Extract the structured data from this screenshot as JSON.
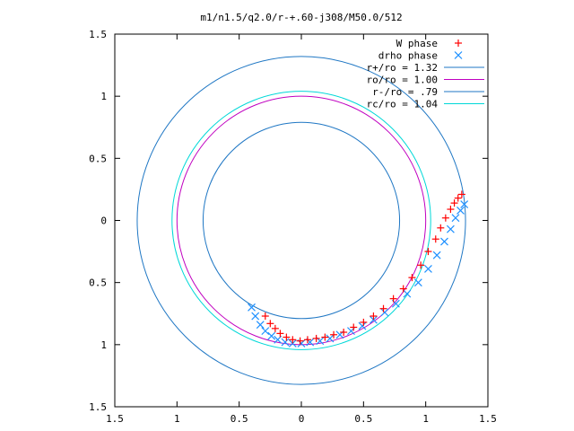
{
  "chart_data": {
    "type": "scatter",
    "title": "m1/n1.5/q2.0/r-+.60-j308/M50.0/512",
    "xlabel": "",
    "ylabel": "",
    "xlim": [
      -1.5,
      1.5
    ],
    "ylim": [
      -1.5,
      1.5
    ],
    "x_ticks": [
      -1.5,
      -1,
      -0.5,
      0,
      0.5,
      1,
      1.5
    ],
    "y_ticks": [
      -1.5,
      -1,
      -0.5,
      0,
      0.5,
      1,
      1.5
    ],
    "x_tick_labels": [
      "1.5",
      "1",
      "0.5",
      "0",
      "0.5",
      "1",
      "1.5"
    ],
    "y_tick_labels": [
      "1.5",
      "1",
      "0.5",
      "0",
      "0.5",
      "1",
      "1.5"
    ],
    "grid": false,
    "legend_position": "top-right",
    "colors": {
      "w_phase": "#ff0000",
      "drho_phase": "#1e90ff",
      "r_plus": "#1f77c4",
      "ro": "#c000c0",
      "r_minus": "#1f77c4",
      "rc": "#00d8d8"
    },
    "point_series": [
      {
        "name": "W phase",
        "marker": "plus",
        "color": "#ff0000",
        "x": [
          -0.29,
          -0.25,
          -0.21,
          -0.17,
          -0.12,
          -0.07,
          -0.01,
          0.05,
          0.12,
          0.19,
          0.26,
          0.34,
          0.42,
          0.5,
          0.58,
          0.66,
          0.74,
          0.82,
          0.89,
          0.96,
          1.02,
          1.08,
          1.12,
          1.16,
          1.2,
          1.23,
          1.26,
          1.29
        ],
        "y": [
          -0.77,
          -0.83,
          -0.87,
          -0.91,
          -0.94,
          -0.96,
          -0.97,
          -0.96,
          -0.95,
          -0.94,
          -0.92,
          -0.9,
          -0.86,
          -0.82,
          -0.77,
          -0.71,
          -0.63,
          -0.55,
          -0.46,
          -0.36,
          -0.25,
          -0.15,
          -0.06,
          0.02,
          0.09,
          0.14,
          0.18,
          0.21
        ]
      },
      {
        "name": "drho phase",
        "marker": "cross",
        "color": "#1e90ff",
        "x": [
          -0.4,
          -0.37,
          -0.33,
          -0.29,
          -0.24,
          -0.19,
          -0.13,
          -0.07,
          0.0,
          0.07,
          0.15,
          0.23,
          0.31,
          0.4,
          0.49,
          0.58,
          0.67,
          0.76,
          0.85,
          0.94,
          1.02,
          1.09,
          1.15,
          1.2,
          1.24,
          1.28,
          1.31
        ],
        "y": [
          -0.7,
          -0.77,
          -0.84,
          -0.89,
          -0.93,
          -0.96,
          -0.98,
          -0.99,
          -0.99,
          -0.98,
          -0.97,
          -0.95,
          -0.92,
          -0.89,
          -0.85,
          -0.8,
          -0.74,
          -0.67,
          -0.59,
          -0.5,
          -0.39,
          -0.28,
          -0.17,
          -0.07,
          0.02,
          0.08,
          0.13
        ]
      }
    ],
    "circles": [
      {
        "name": "r+/ro = 1.32",
        "radius": 1.32,
        "color": "#1f77c4"
      },
      {
        "name": "ro/ro = 1.00",
        "radius": 1.0,
        "color": "#c000c0"
      },
      {
        "name": "r-/ro = .79",
        "radius": 0.79,
        "color": "#1f77c4"
      },
      {
        "name": "rc/ro = 1.04",
        "radius": 1.04,
        "color": "#00d8d8"
      }
    ],
    "legend": [
      {
        "label": "W phase",
        "kind": "plus",
        "color": "#ff0000"
      },
      {
        "label": "drho phase",
        "kind": "cross",
        "color": "#1e90ff"
      },
      {
        "label": "r+/ro = 1.32",
        "kind": "line",
        "color": "#1f77c4"
      },
      {
        "label": "ro/ro = 1.00",
        "kind": "line",
        "color": "#c000c0"
      },
      {
        "label": "r-/ro = .79",
        "kind": "line",
        "color": "#1f77c4"
      },
      {
        "label": "rc/ro = 1.04",
        "kind": "line",
        "color": "#00d8d8"
      }
    ]
  }
}
